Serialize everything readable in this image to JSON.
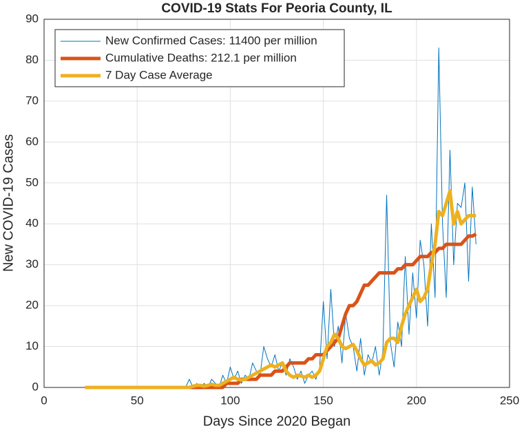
{
  "chart_data": {
    "type": "line",
    "title": "COVID-19 Stats For Peoria County, IL",
    "x_label": "Days Since 2020 Began",
    "y_label": "New COVID-19 Cases",
    "xlim": [
      0,
      250
    ],
    "xticks": [
      0,
      50,
      100,
      150,
      200,
      250
    ],
    "ylim": [
      0,
      90
    ],
    "yticks": [
      0,
      10,
      20,
      30,
      40,
      50,
      60,
      70,
      80,
      90
    ],
    "grid": true,
    "legend_position": "top-left",
    "x": [
      22,
      24,
      26,
      28,
      30,
      32,
      34,
      36,
      38,
      40,
      42,
      44,
      46,
      48,
      50,
      52,
      54,
      56,
      58,
      60,
      62,
      64,
      66,
      68,
      70,
      72,
      74,
      76,
      78,
      80,
      82,
      84,
      86,
      88,
      90,
      92,
      94,
      96,
      98,
      100,
      102,
      104,
      106,
      108,
      110,
      112,
      114,
      116,
      118,
      120,
      122,
      124,
      126,
      128,
      130,
      132,
      134,
      136,
      138,
      140,
      142,
      144,
      146,
      148,
      150,
      152,
      154,
      156,
      158,
      160,
      162,
      164,
      166,
      168,
      170,
      172,
      174,
      176,
      178,
      180,
      182,
      184,
      186,
      188,
      190,
      192,
      194,
      196,
      198,
      200,
      202,
      204,
      206,
      208,
      210,
      212,
      214,
      216,
      218,
      220,
      222,
      224,
      226,
      228,
      230,
      232
    ],
    "series": [
      {
        "name": "New Confirmed Cases: 11400 per million",
        "color": "#0072bd",
        "width": 1,
        "values": [
          0,
          0,
          0,
          0,
          0,
          0,
          0,
          0,
          0,
          0,
          0,
          0,
          0,
          0,
          0,
          0,
          0,
          0,
          0,
          0,
          0,
          0,
          0,
          0,
          0,
          0,
          0,
          0,
          2,
          0,
          1,
          0,
          1,
          0,
          2,
          1,
          0,
          3,
          1,
          5,
          2,
          4,
          1,
          3,
          2,
          6,
          4,
          3,
          10,
          7,
          5,
          8,
          4,
          6,
          3,
          7,
          5,
          2,
          4,
          1,
          3,
          4,
          2,
          5,
          21,
          7,
          24,
          10,
          15,
          6,
          18,
          12,
          10,
          4,
          12,
          3,
          8,
          6,
          10,
          3,
          9,
          47,
          11,
          5,
          16,
          10,
          32,
          13,
          28,
          17,
          36,
          30,
          15,
          40,
          22,
          83,
          40,
          22,
          58,
          30,
          45,
          44,
          50,
          26,
          49,
          35
        ]
      },
      {
        "name": "Cumulative Deaths: 212.1 per million",
        "color": "#d95319",
        "width": 5,
        "values": [
          0,
          0,
          0,
          0,
          0,
          0,
          0,
          0,
          0,
          0,
          0,
          0,
          0,
          0,
          0,
          0,
          0,
          0,
          0,
          0,
          0,
          0,
          0,
          0,
          0,
          0,
          0,
          0,
          0,
          0,
          0,
          0,
          0,
          0,
          0,
          0,
          0,
          0,
          1,
          1,
          1,
          1,
          2,
          2,
          2,
          2,
          2,
          3,
          3,
          3,
          3,
          4,
          4,
          4,
          5,
          6,
          6,
          6,
          6,
          6,
          7,
          7,
          8,
          8,
          8,
          9,
          10,
          11,
          12,
          15,
          18,
          20,
          20,
          21,
          23,
          25,
          25,
          26,
          27,
          28,
          28,
          28,
          28,
          28,
          29,
          29,
          30,
          30,
          30,
          31,
          32,
          32,
          32,
          33,
          33,
          34,
          34,
          35,
          35,
          35,
          35,
          35,
          36,
          37,
          37,
          37.5
        ]
      },
      {
        "name": "7 Day Case Average",
        "color": "#edb120",
        "width": 5,
        "values": [
          0,
          0,
          0,
          0,
          0,
          0,
          0,
          0,
          0,
          0,
          0,
          0,
          0,
          0,
          0,
          0,
          0,
          0,
          0,
          0,
          0,
          0,
          0,
          0,
          0,
          0,
          0,
          0,
          0,
          0.3,
          0.5,
          0.5,
          0.3,
          0.5,
          0.8,
          0.5,
          0.5,
          1,
          1.5,
          2,
          2.5,
          2,
          1.8,
          2,
          2.5,
          3,
          3.5,
          4,
          4.5,
          5,
          5.5,
          5,
          5.5,
          6,
          4,
          3,
          2.5,
          3,
          2.8,
          2.5,
          3,
          2.5,
          3,
          4,
          7,
          10,
          11,
          13,
          12,
          10,
          9.5,
          10,
          10.5,
          9,
          7,
          5.5,
          6,
          6.5,
          5.5,
          6,
          7,
          11,
          12,
          12,
          11,
          15,
          18,
          20,
          22,
          24,
          21,
          22,
          24,
          30,
          35,
          43,
          42,
          45,
          48,
          40,
          43,
          40,
          41,
          42,
          42,
          42
        ]
      }
    ]
  }
}
